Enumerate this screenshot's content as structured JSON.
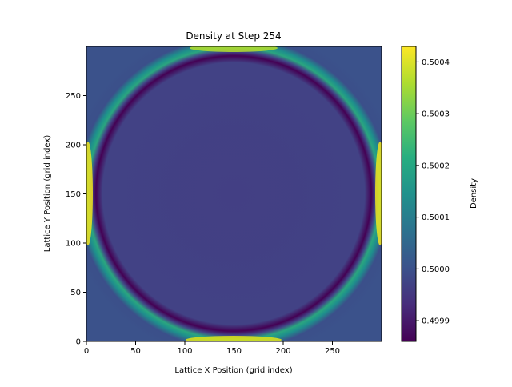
{
  "chart_data": {
    "type": "heatmap",
    "title": "Density at Step 254",
    "xlabel": "Lattice X Position (grid index)",
    "ylabel": "Lattice Y Position (grid index)",
    "xlim": [
      0,
      300
    ],
    "ylim": [
      0,
      300
    ],
    "x_ticks": [
      0,
      50,
      100,
      150,
      200,
      250
    ],
    "y_ticks": [
      0,
      50,
      100,
      150,
      200,
      250
    ],
    "colorbar": {
      "label": "Density",
      "colormap": "viridis",
      "range": [
        0.49986,
        0.50043
      ],
      "ticks": [
        "0.4999",
        "0.5000",
        "0.5001",
        "0.5002",
        "0.5003",
        "0.5004"
      ],
      "tick_values": [
        0.4999,
        0.5,
        0.5001,
        0.5002,
        0.5003,
        0.5004
      ]
    },
    "field": {
      "description_values": {
        "background": 0.5,
        "ring_center": [
          150,
          150
        ],
        "ring_inner_radius": 143,
        "ring_inner_value": 0.49986,
        "ring_outer_radius": 156,
        "ring_outer_value": 0.50027,
        "peak_value_edges": 0.50043
      }
    },
    "grid": false
  }
}
